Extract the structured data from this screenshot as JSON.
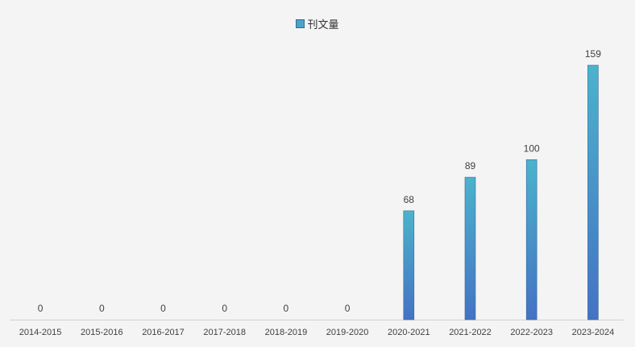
{
  "chart_data": {
    "type": "bar",
    "categories": [
      "2014-2015",
      "2015-2016",
      "2016-2017",
      "2017-2018",
      "2018-2019",
      "2019-2020",
      "2020-2021",
      "2021-2022",
      "2022-2023",
      "2023-2024"
    ],
    "series": [
      {
        "name": "刊文量",
        "values": [
          0,
          0,
          0,
          0,
          0,
          0,
          68,
          89,
          100,
          159
        ]
      }
    ],
    "title": "",
    "xlabel": "",
    "ylabel": "",
    "ylim": [
      0,
      159
    ],
    "grid": false,
    "legend_position": "top",
    "colors": {
      "bar_top": "#4bb3cc",
      "bar_bottom": "#4472c4",
      "axis": "#d0d0d0",
      "text": "#404040"
    }
  }
}
